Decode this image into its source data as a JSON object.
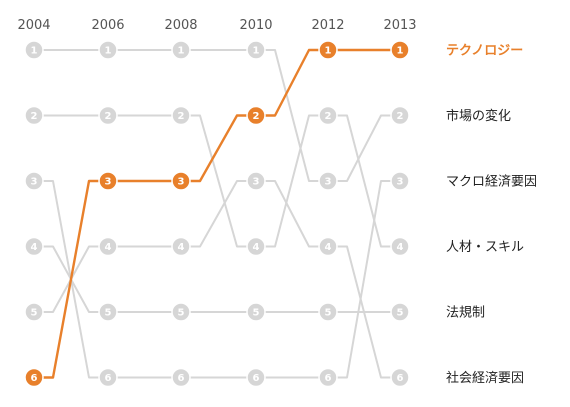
{
  "chart_data": {
    "type": "line",
    "title": "",
    "x": [
      "2004",
      "2006",
      "2008",
      "2010",
      "2012",
      "2013"
    ],
    "y_scale": "rank",
    "ylim": [
      1,
      6
    ],
    "highlight_color": "#e8802b",
    "base_color": "#d6d6d6",
    "highlight_series": "テクノロジー",
    "series": [
      {
        "name": "テクノロジー",
        "values": [
          6,
          3,
          3,
          2,
          1,
          1
        ]
      },
      {
        "name": "市場の変化",
        "values": [
          1,
          1,
          1,
          1,
          3,
          2
        ]
      },
      {
        "name": "マクロ経済要因",
        "values": [
          3,
          6,
          6,
          6,
          6,
          3
        ]
      },
      {
        "name": "人材・スキル",
        "values": [
          2,
          2,
          2,
          4,
          2,
          4
        ]
      },
      {
        "name": "法規制",
        "values": [
          4,
          5,
          5,
          5,
          5,
          5
        ]
      },
      {
        "name": "社会経済要因",
        "values": [
          5,
          4,
          4,
          3,
          4,
          6
        ]
      }
    ],
    "legend_order": [
      "テクノロジー",
      "市場の変化",
      "マクロ経済要因",
      "人材・スキル",
      "法規制",
      "社会経済要因"
    ]
  }
}
